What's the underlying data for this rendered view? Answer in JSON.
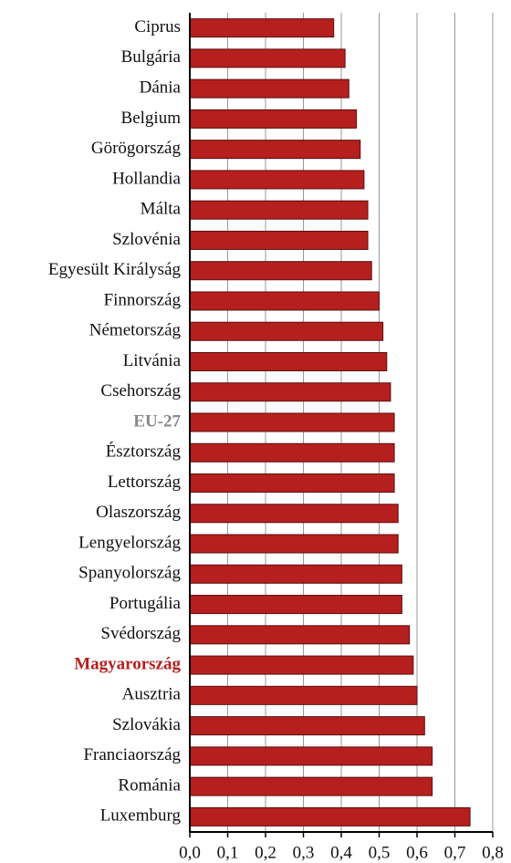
{
  "chart_data": {
    "type": "barh",
    "categories": [
      "Ciprus",
      "Bulgária",
      "Dánia",
      "Belgium",
      "Görögország",
      "Hollandia",
      "Málta",
      "Szlovénia",
      "Egyesült Királyság",
      "Finnország",
      "Németország",
      "Litvánia",
      "Csehország",
      "EU-27",
      "Észtország",
      "Lettország",
      "Olaszország",
      "Lengyelország",
      "Spanyolország",
      "Portugália",
      "Svédország",
      "Magyarország",
      "Ausztria",
      "Szlovákia",
      "Franciaország",
      "Románia",
      "Luxemburg"
    ],
    "values": [
      0.38,
      0.41,
      0.42,
      0.44,
      0.45,
      0.46,
      0.47,
      0.47,
      0.48,
      0.5,
      0.51,
      0.52,
      0.53,
      0.54,
      0.54,
      0.54,
      0.55,
      0.55,
      0.56,
      0.56,
      0.58,
      0.59,
      0.6,
      0.62,
      0.64,
      0.64,
      0.74
    ],
    "color": "#b5201f",
    "label_colors": [
      "#111",
      "#111",
      "#111",
      "#111",
      "#111",
      "#111",
      "#111",
      "#111",
      "#111",
      "#111",
      "#111",
      "#111",
      "#111",
      "#888",
      "#111",
      "#111",
      "#111",
      "#111",
      "#111",
      "#111",
      "#111",
      "#b5201f",
      "#111",
      "#111",
      "#111",
      "#111",
      "#111"
    ],
    "label_bold": [
      false,
      false,
      false,
      false,
      false,
      false,
      false,
      false,
      false,
      false,
      false,
      false,
      false,
      true,
      false,
      false,
      false,
      false,
      false,
      false,
      false,
      true,
      false,
      false,
      false,
      false,
      false
    ],
    "xlim": [
      0,
      0.8
    ],
    "xticks": [
      {
        "value": 0,
        "label": "0,0"
      },
      {
        "value": 0.1,
        "label": "0,1"
      },
      {
        "value": 0.2,
        "label": "0,2"
      },
      {
        "value": 0.3,
        "label": "0,3"
      },
      {
        "value": 0.4,
        "label": "0,4"
      },
      {
        "value": 0.5,
        "label": "0,5"
      },
      {
        "value": 0.6,
        "label": "0,6"
      },
      {
        "value": 0.7,
        "label": "0,7"
      },
      {
        "value": 0.8,
        "label": "0,8"
      }
    ],
    "grid": true
  }
}
